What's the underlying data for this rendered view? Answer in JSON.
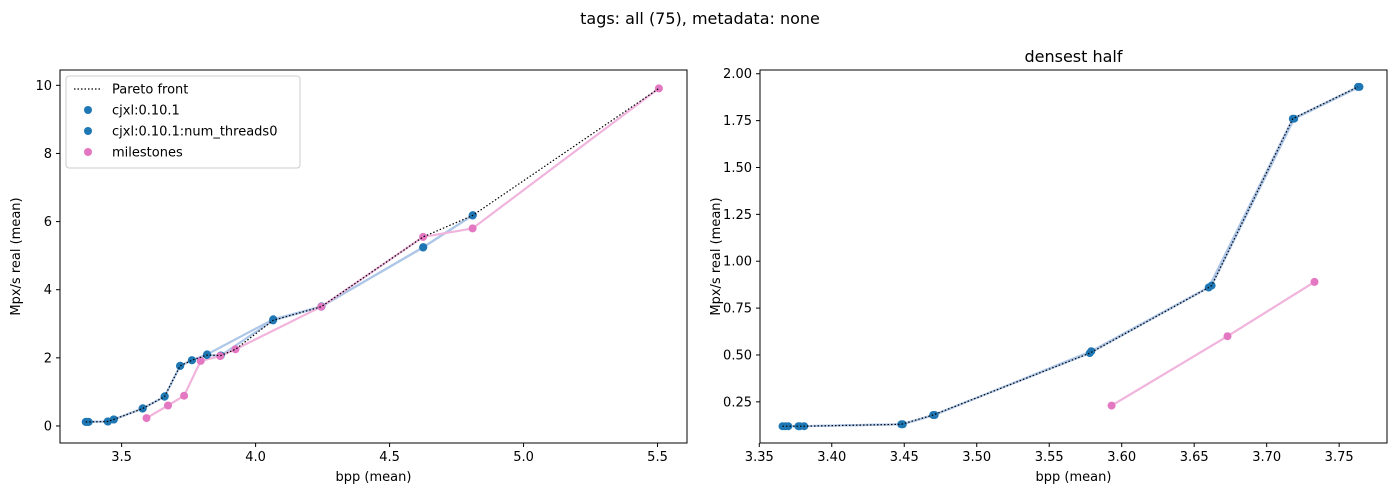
{
  "suptitle": "tags: all (75), metadata: none",
  "colors": {
    "cjxl": "#1f77b4",
    "cjxl_line": "#aec7e8",
    "milestones": "#e377c2",
    "milestones_line": "#f0b4dd",
    "pareto": "#000000"
  },
  "chart_data": [
    {
      "type": "scatter",
      "title": "",
      "xlabel": "bpp (mean)",
      "ylabel": "Mpx/s real (mean)",
      "xlim": [
        3.27,
        5.61
      ],
      "ylim": [
        -0.5,
        10.45
      ],
      "xticks": [
        3.5,
        4.0,
        4.5,
        5.0,
        5.5
      ],
      "xtick_labels": [
        "3.5",
        "4.0",
        "4.5",
        "5.0",
        "5.5"
      ],
      "yticks": [
        0,
        2,
        4,
        6,
        8,
        10
      ],
      "ytick_labels": [
        "0",
        "2",
        "4",
        "6",
        "8",
        "10"
      ],
      "legend": {
        "position": "upper left",
        "entries": [
          "Pareto front",
          "cjxl:0.10.1",
          "cjxl:0.10.1:num_threads0",
          "milestones"
        ]
      },
      "series": [
        {
          "name": "Pareto front",
          "kind": "dotted-line",
          "x": [
            3.366,
            3.37,
            3.377,
            3.448,
            3.47,
            3.578,
            3.66,
            3.718,
            3.762,
            3.818,
            3.87,
            3.925,
            4.065,
            4.245,
            4.625,
            4.81,
            5.505
          ],
          "y": [
            0.12,
            0.12,
            0.12,
            0.13,
            0.19,
            0.51,
            0.86,
            1.76,
            1.93,
            2.08,
            2.07,
            2.25,
            3.1,
            3.5,
            5.55,
            6.18,
            9.91
          ]
        },
        {
          "name": "cjxl:0.10.1",
          "x": [
            3.366,
            3.37,
            3.377,
            3.448,
            3.47,
            3.578,
            3.66,
            3.718,
            3.762,
            3.818,
            3.87,
            4.065,
            4.245,
            4.625,
            4.81
          ],
          "y": [
            0.12,
            0.12,
            0.12,
            0.13,
            0.19,
            0.51,
            0.86,
            1.76,
            1.93,
            2.08,
            2.07,
            3.1,
            3.5,
            5.24,
            6.18
          ]
        },
        {
          "name": "cjxl:0.10.1:num_threads0",
          "x": [
            3.368,
            3.375,
            3.449,
            3.471,
            3.579,
            3.661,
            3.719,
            3.763,
            3.819,
            4.066,
            4.246,
            4.626,
            4.811
          ],
          "y": [
            0.12,
            0.12,
            0.13,
            0.19,
            0.52,
            0.87,
            1.77,
            1.93,
            2.1,
            3.13,
            3.51,
            5.25,
            6.19
          ]
        },
        {
          "name": "milestones",
          "x": [
            3.593,
            3.673,
            3.733,
            3.795,
            3.868,
            3.925,
            4.245,
            4.625,
            4.81,
            5.505
          ],
          "y": [
            0.23,
            0.6,
            0.89,
            1.91,
            2.05,
            2.25,
            3.5,
            5.55,
            5.8,
            9.91
          ]
        }
      ]
    },
    {
      "type": "scatter",
      "title": "densest half",
      "xlabel": "bpp (mean)",
      "ylabel": "Mpx/s real (mean)",
      "xlim": [
        3.3505,
        3.783
      ],
      "ylim": [
        0.0305,
        2.02
      ],
      "xticks": [
        3.35,
        3.4,
        3.45,
        3.5,
        3.55,
        3.6,
        3.65,
        3.7,
        3.75
      ],
      "xtick_labels": [
        "3.35",
        "3.40",
        "3.45",
        "3.50",
        "3.55",
        "3.60",
        "3.65",
        "3.70",
        "3.75"
      ],
      "yticks": [
        0.25,
        0.5,
        0.75,
        1.0,
        1.25,
        1.5,
        1.75,
        2.0
      ],
      "ytick_labels": [
        "0.25",
        "0.50",
        "0.75",
        "1.00",
        "1.25",
        "1.50",
        "1.75",
        "2.00"
      ],
      "series": [
        {
          "name": "Pareto front",
          "kind": "dotted-line",
          "x": [
            3.366,
            3.37,
            3.377,
            3.381,
            3.448,
            3.47,
            3.578,
            3.66,
            3.662,
            3.718,
            3.763
          ],
          "y": [
            0.12,
            0.12,
            0.12,
            0.12,
            0.13,
            0.18,
            0.51,
            0.86,
            0.87,
            1.76,
            1.93
          ]
        },
        {
          "name": "cjxl:0.10.1",
          "x": [
            3.366,
            3.37,
            3.377,
            3.381,
            3.448,
            3.47,
            3.578,
            3.66,
            3.718,
            3.763
          ],
          "y": [
            0.12,
            0.12,
            0.12,
            0.12,
            0.13,
            0.18,
            0.51,
            0.86,
            1.76,
            1.93
          ]
        },
        {
          "name": "cjxl:0.10.1:num_threads0",
          "x": [
            3.368,
            3.378,
            3.449,
            3.471,
            3.579,
            3.662,
            3.719,
            3.764
          ],
          "y": [
            0.12,
            0.12,
            0.13,
            0.18,
            0.52,
            0.87,
            1.76,
            1.93
          ]
        },
        {
          "name": "milestones",
          "x": [
            3.593,
            3.673,
            3.733
          ],
          "y": [
            0.23,
            0.6,
            0.89
          ]
        }
      ]
    }
  ]
}
